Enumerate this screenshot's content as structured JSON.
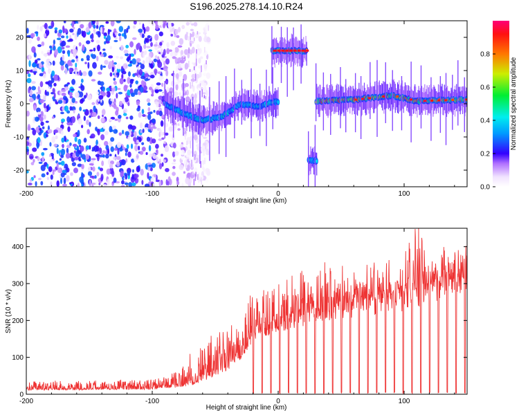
{
  "figure_title": "S196.2025.278.14.10.R24",
  "chart_data": [
    {
      "type": "heatmap",
      "xlabel": "Height of straight line (km)",
      "ylabel": "Frequency (Hz)",
      "xlim": [
        -200,
        150
      ],
      "ylim": [
        -25,
        25
      ],
      "xticks": [
        -200,
        -100,
        0,
        100
      ],
      "yticks": [
        -20,
        -10,
        0,
        10,
        20
      ],
      "colorbar": {
        "label": "Normalized spectral amplitude",
        "range": [
          0,
          1
        ],
        "ticks": [
          0.0,
          0.2,
          0.4,
          0.6,
          0.8
        ]
      },
      "features": [
        {
          "name": "noise-region",
          "x_range": [
            -200,
            -55
          ],
          "freq_range": [
            -25,
            25
          ],
          "amplitude": 0.25
        },
        {
          "name": "trace-1",
          "x_range": [
            -90,
            0
          ],
          "freq_points": [
            [
              -90,
              0
            ],
            [
              -75,
              -3
            ],
            [
              -60,
              -5
            ],
            [
              -45,
              -4
            ],
            [
              -30,
              0
            ],
            [
              -15,
              -1
            ],
            [
              -5,
              0.5
            ]
          ],
          "amplitude": 0.5
        },
        {
          "name": "trace-2",
          "x_range": [
            -5,
            23
          ],
          "freq": 16,
          "amplitude": 1.0
        },
        {
          "name": "trace-3",
          "x_range": [
            24,
            31
          ],
          "freq": -17,
          "amplitude": 0.45
        },
        {
          "name": "trace-4",
          "x_range": [
            30,
            150
          ],
          "freq_points": [
            [
              30,
              0.8
            ],
            [
              60,
              1.2
            ],
            [
              90,
              2.5
            ],
            [
              110,
              0.8
            ],
            [
              150,
              1.3
            ]
          ],
          "amplitude": 0.9
        }
      ]
    },
    {
      "type": "line",
      "xlabel": "Height of straight line (km)",
      "ylabel": "SNR (10 * v/v)",
      "xlim": [
        -200,
        150
      ],
      "ylim": [
        0,
        450
      ],
      "xticks": [
        -200,
        -100,
        0,
        100
      ],
      "yticks": [
        0,
        100,
        200,
        300,
        400
      ],
      "color": "#ee3333",
      "series": [
        {
          "name": "SNR",
          "envelope": {
            "x": [
              -200,
              -100,
              -80,
              -65,
              -50,
              -40,
              -30,
              -20,
              -10,
              0,
              10,
              20,
              40,
              60,
              80,
              100,
              110,
              120,
              130,
              150
            ],
            "baseline": [
              12,
              14,
              20,
              30,
              55,
              75,
              105,
              150,
              170,
              185,
              200,
              200,
              225,
              235,
              245,
              255,
              265,
              270,
              290,
              300
            ],
            "peak": [
              35,
              40,
              60,
              140,
              160,
              185,
              235,
              280,
              300,
              310,
              320,
              340,
              345,
              330,
              350,
              350,
              450,
              390,
              400,
              370
            ]
          },
          "dropout_spacing_km": 7,
          "dropout_start_km": -20
        }
      ]
    }
  ]
}
